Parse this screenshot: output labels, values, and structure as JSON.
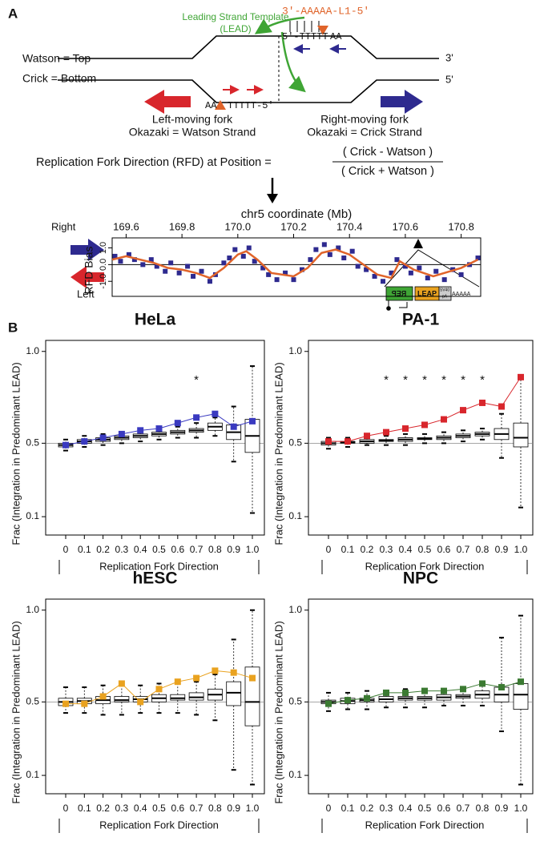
{
  "panel_labels": [
    "A",
    "B"
  ],
  "schematic": {
    "lead_label": [
      "Leading Strand Template",
      "(LEAD)"
    ],
    "l1_top": "3'-AAAAA-L1-5'",
    "target_top": [
      "5'-TTTTT",
      "AA"
    ],
    "watson": "Watson = Top",
    "crick": "Crick = Bottom",
    "end_top": "3'",
    "end_bottom": "5'",
    "target_bottom": [
      "AA",
      "TTTTT-5'"
    ],
    "left_fork": [
      "Left-moving fork",
      "Okazaki = Watson Strand"
    ],
    "right_fork": [
      "Right-moving fork",
      "Okazaki = Crick Strand"
    ],
    "rfd_formula": [
      "Replication Fork Direction (RFD) at Position =",
      "( Crick - Watson )",
      "( Crick + Watson )"
    ],
    "construct": [
      "REP",
      "LEAP",
      "SV40",
      "pA",
      "AAAAA"
    ]
  },
  "chart_data": [
    {
      "type": "scatter",
      "xlabel": "chr5 coordinate (Mb)",
      "ylabel": "RFD Bias",
      "direction_labels": [
        "Right",
        "Left"
      ],
      "xlim": [
        169.55,
        170.87
      ],
      "ylim": [
        -1.9,
        1.6
      ],
      "xticks": [
        169.6,
        169.8,
        {
          "value": 170,
          "label": "170.0"
        },
        170.2,
        170.4,
        170.6,
        170.8
      ],
      "yticks": [
        {
          "value": 1,
          "label": "1.0"
        },
        {
          "value": 0,
          "label": "0.0"
        },
        {
          "value": -1,
          "label": "-1.0"
        }
      ],
      "hline": 0,
      "series": [
        {
          "color": "#2e2a8f",
          "marker": "square",
          "x": [
            169.56,
            169.58,
            169.61,
            169.63,
            169.66,
            169.69,
            169.71,
            169.74,
            169.76,
            169.79,
            169.82,
            169.84,
            169.87,
            169.9,
            169.92,
            169.95,
            169.97,
            169.99,
            170.02,
            170.04,
            170.06,
            170.09,
            170.11,
            170.14,
            170.17,
            170.2,
            170.23,
            170.26,
            170.28,
            170.31,
            170.33,
            170.36,
            170.38,
            170.41,
            170.43,
            170.46,
            170.49,
            170.52,
            170.55,
            170.57,
            170.6,
            170.62,
            170.65,
            170.68,
            170.71,
            170.74,
            170.77,
            170.8,
            170.83,
            170.86
          ],
          "values": [
            0.5,
            0.2,
            0.6,
            0.3,
            0.0,
            0.3,
            -0.1,
            -0.4,
            0.1,
            -0.5,
            -0.1,
            -0.7,
            -0.4,
            -1.0,
            -0.6,
            0.1,
            0.4,
            0.9,
            0.5,
            1.0,
            0.2,
            -0.2,
            -0.6,
            -0.9,
            -0.5,
            -0.9,
            -0.3,
            0.3,
            0.9,
            1.2,
            0.6,
            1.0,
            0.4,
            0.8,
            -0.1,
            -0.3,
            -0.7,
            -1.0,
            -0.5,
            0.3,
            -0.1,
            -0.5,
            -0.2,
            -0.8,
            -0.4,
            -0.9,
            -0.3,
            -0.6,
            0.0,
            0.4
          ]
        },
        {
          "color": "#e0642a",
          "marker": "line",
          "x": [
            169.55,
            169.6,
            169.7,
            169.75,
            169.8,
            169.85,
            169.9,
            169.95,
            170.0,
            170.03,
            170.07,
            170.12,
            170.2,
            170.25,
            170.3,
            170.35,
            170.4,
            170.45,
            170.5,
            170.55,
            170.58,
            170.63,
            170.7,
            170.8,
            170.86
          ],
          "values": [
            0.3,
            0.5,
            0.1,
            -0.2,
            -0.3,
            -0.5,
            -0.8,
            -0.2,
            0.6,
            0.8,
            0.3,
            -0.5,
            -0.7,
            -0.2,
            0.7,
            0.9,
            0.6,
            0.0,
            -0.6,
            -0.8,
            0.2,
            -0.3,
            -0.7,
            -0.2,
            0.3
          ]
        }
      ]
    },
    {
      "type": "box",
      "title": "HeLa",
      "categories": [
        "0",
        "0.1",
        "0.2",
        "0.3",
        "0.4",
        "0.5",
        "0.6",
        "0.7",
        "0.8",
        "0.9",
        "1.0"
      ],
      "xlabel": "Replication Fork Direction",
      "ylabel": "Frac (Integration in Predominant LEAD)",
      "ylim": [
        0,
        1.06
      ],
      "yticks": [
        0.1,
        0.5,
        {
          "value": 1,
          "label": "1.0"
        }
      ],
      "hline": 0.5,
      "boxes": {
        "whisker_low": [
          0.46,
          0.48,
          0.49,
          0.5,
          0.51,
          0.52,
          0.53,
          0.53,
          0.54,
          0.4,
          0.12
        ],
        "q1": [
          0.48,
          0.5,
          0.51,
          0.52,
          0.53,
          0.54,
          0.55,
          0.56,
          0.57,
          0.52,
          0.45
        ],
        "median": [
          0.49,
          0.51,
          0.52,
          0.53,
          0.54,
          0.55,
          0.56,
          0.57,
          0.59,
          0.56,
          0.54
        ],
        "q3": [
          0.5,
          0.52,
          0.53,
          0.54,
          0.55,
          0.56,
          0.57,
          0.58,
          0.61,
          0.6,
          0.63
        ],
        "whisker_high": [
          0.52,
          0.54,
          0.55,
          0.56,
          0.57,
          0.58,
          0.59,
          0.61,
          0.64,
          0.7,
          0.92
        ]
      },
      "series": [
        {
          "color": "#3a3ac0",
          "values": [
            0.49,
            0.51,
            0.53,
            0.55,
            0.57,
            0.58,
            0.61,
            0.64,
            0.66,
            0.59,
            0.62
          ]
        }
      ],
      "annotations": [
        {
          "x": "0.7",
          "text": "*"
        }
      ]
    },
    {
      "type": "box",
      "title": "PA-1",
      "categories": [
        "0",
        "0.1",
        "0.2",
        "0.3",
        "0.4",
        "0.5",
        "0.6",
        "0.7",
        "0.8",
        "0.9",
        "1.0"
      ],
      "xlabel": "Replication Fork Direction",
      "ylabel": "Frac (Integration in Predominant LEAD)",
      "ylim": [
        0,
        1.06
      ],
      "yticks": [
        0.1,
        0.5,
        {
          "value": 1,
          "label": "1.0"
        }
      ],
      "hline": 0.5,
      "boxes": {
        "whisker_low": [
          0.47,
          0.48,
          0.49,
          0.49,
          0.49,
          0.5,
          0.5,
          0.51,
          0.52,
          0.42,
          0.15
        ],
        "q1": [
          0.49,
          0.5,
          0.5,
          0.51,
          0.51,
          0.52,
          0.52,
          0.53,
          0.54,
          0.52,
          0.48
        ],
        "median": [
          0.5,
          0.505,
          0.51,
          0.515,
          0.52,
          0.525,
          0.53,
          0.54,
          0.55,
          0.55,
          0.53
        ],
        "q3": [
          0.51,
          0.51,
          0.52,
          0.52,
          0.53,
          0.53,
          0.54,
          0.55,
          0.56,
          0.58,
          0.61
        ],
        "whisker_high": [
          0.53,
          0.53,
          0.54,
          0.54,
          0.55,
          0.55,
          0.56,
          0.57,
          0.58,
          0.66,
          0.86
        ]
      },
      "series": [
        {
          "color": "#d8262c",
          "values": [
            0.51,
            0.51,
            0.54,
            0.56,
            0.58,
            0.6,
            0.63,
            0.68,
            0.72,
            0.7,
            0.86
          ]
        }
      ],
      "annotations": [
        {
          "x": "0.3",
          "text": "*"
        },
        {
          "x": "0.4",
          "text": "*"
        },
        {
          "x": "0.5",
          "text": "*"
        },
        {
          "x": "0.6",
          "text": "*"
        },
        {
          "x": "0.7",
          "text": "*"
        },
        {
          "x": "0.8",
          "text": "*"
        }
      ]
    },
    {
      "type": "box",
      "title": "hESC",
      "categories": [
        "0",
        "0.1",
        "0.2",
        "0.3",
        "0.4",
        "0.5",
        "0.6",
        "0.7",
        "0.8",
        "0.9",
        "1.0"
      ],
      "xlabel": "Replication Fork Direction",
      "ylabel": "Frac (Integration in Predominant LEAD)",
      "ylim": [
        0,
        1.06
      ],
      "yticks": [
        0.1,
        0.5,
        {
          "value": 1,
          "label": "1.0"
        }
      ],
      "hline": 0.5,
      "boxes": {
        "whisker_low": [
          0.44,
          0.44,
          0.43,
          0.43,
          0.44,
          0.44,
          0.44,
          0.43,
          0.4,
          0.13,
          0.05
        ],
        "q1": [
          0.48,
          0.49,
          0.49,
          0.5,
          0.5,
          0.5,
          0.51,
          0.51,
          0.51,
          0.48,
          0.37
        ],
        "median": [
          0.5,
          0.505,
          0.51,
          0.51,
          0.515,
          0.52,
          0.52,
          0.525,
          0.54,
          0.55,
          0.5
        ],
        "q3": [
          0.52,
          0.52,
          0.53,
          0.53,
          0.53,
          0.54,
          0.54,
          0.55,
          0.57,
          0.61,
          0.69
        ],
        "whisker_high": [
          0.58,
          0.58,
          0.59,
          0.59,
          0.59,
          0.6,
          0.6,
          0.61,
          0.65,
          0.84,
          1.0
        ]
      },
      "series": [
        {
          "color": "#e9a21f",
          "values": [
            0.49,
            0.49,
            0.53,
            0.6,
            0.5,
            0.57,
            0.61,
            0.63,
            0.67,
            0.66,
            0.63
          ]
        }
      ],
      "annotations": []
    },
    {
      "type": "box",
      "title": "NPC",
      "categories": [
        "0",
        "0.1",
        "0.2",
        "0.3",
        "0.4",
        "0.5",
        "0.6",
        "0.7",
        "0.8",
        "0.9",
        "1.0"
      ],
      "xlabel": "Replication Fork Direction",
      "ylabel": "Frac (Integration in Predominant LEAD)",
      "ylim": [
        0,
        1.06
      ],
      "yticks": [
        0.1,
        0.5,
        {
          "value": 1,
          "label": "1.0"
        }
      ],
      "hline": 0.5,
      "boxes": {
        "whisker_low": [
          0.45,
          0.46,
          0.46,
          0.47,
          0.47,
          0.47,
          0.48,
          0.48,
          0.48,
          0.34,
          0.05
        ],
        "q1": [
          0.49,
          0.49,
          0.5,
          0.5,
          0.51,
          0.51,
          0.51,
          0.52,
          0.52,
          0.5,
          0.46
        ],
        "median": [
          0.5,
          0.505,
          0.51,
          0.515,
          0.52,
          0.52,
          0.525,
          0.53,
          0.54,
          0.54,
          0.54
        ],
        "q3": [
          0.51,
          0.52,
          0.52,
          0.53,
          0.53,
          0.53,
          0.54,
          0.54,
          0.56,
          0.58,
          0.6
        ],
        "whisker_high": [
          0.55,
          0.55,
          0.56,
          0.56,
          0.57,
          0.57,
          0.57,
          0.58,
          0.6,
          0.85,
          0.97
        ]
      },
      "series": [
        {
          "color": "#3b7a32",
          "values": [
            0.49,
            0.51,
            0.52,
            0.55,
            0.55,
            0.56,
            0.56,
            0.57,
            0.6,
            0.58,
            0.61
          ]
        }
      ],
      "annotations": []
    }
  ]
}
